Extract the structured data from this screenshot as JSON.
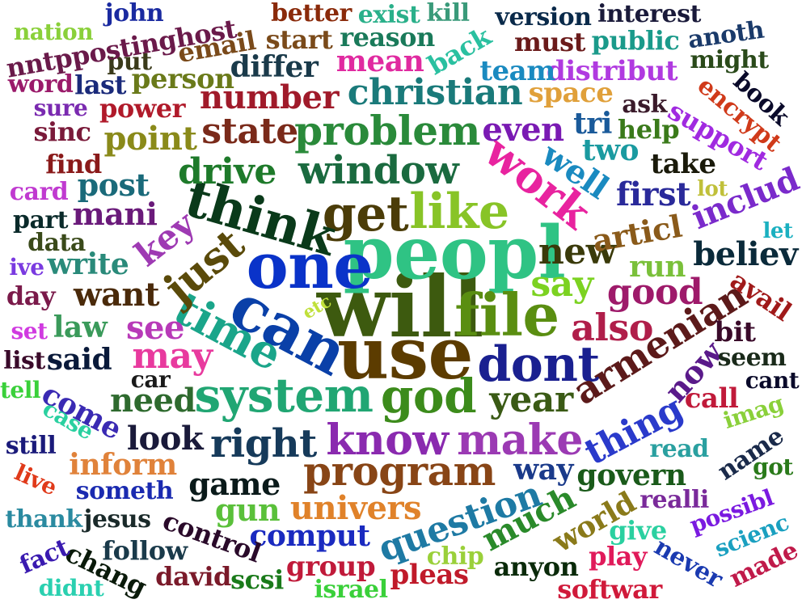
{
  "words": [
    {
      "text": "will",
      "color": "#3d5a0f"
    },
    {
      "text": "peopl",
      "color": "#2fc384"
    },
    {
      "text": "use",
      "color": "#5c3c00"
    },
    {
      "text": "one",
      "color": "#0a33c9"
    },
    {
      "text": "can",
      "color": "#0a40a8"
    },
    {
      "text": "file",
      "color": "#5a8e11"
    },
    {
      "text": "system",
      "color": "#21a673"
    },
    {
      "text": "god",
      "color": "#3c8b1b"
    },
    {
      "text": "get",
      "color": "#4b3c08"
    },
    {
      "text": "like",
      "color": "#88c427"
    },
    {
      "text": "think",
      "color": "#0a3a1a"
    },
    {
      "text": "time",
      "color": "#1aa58a"
    },
    {
      "text": "dont",
      "color": "#1a2090"
    },
    {
      "text": "know",
      "color": "#8a2aaf"
    },
    {
      "text": "make",
      "color": "#9b3ab3"
    },
    {
      "text": "program",
      "color": "#884516"
    },
    {
      "text": "right",
      "color": "#163a5a"
    },
    {
      "text": "work",
      "color": "#e8239f"
    },
    {
      "text": "problem",
      "color": "#2a8a3a"
    },
    {
      "text": "window",
      "color": "#1a6a3f"
    },
    {
      "text": "say",
      "color": "#7cd221"
    },
    {
      "text": "year",
      "color": "#3a5a15"
    },
    {
      "text": "armenian",
      "color": "#5c1a1a"
    },
    {
      "text": "just",
      "color": "#5a4a0a"
    },
    {
      "text": "may",
      "color": "#e83a9e"
    },
    {
      "text": "question",
      "color": "#1e7aa4"
    },
    {
      "text": "thing",
      "color": "#2a3acb"
    },
    {
      "text": "also",
      "color": "#b01e4a"
    },
    {
      "text": "new",
      "color": "#3a3a0a"
    },
    {
      "text": "good",
      "color": "#9e1a6a"
    },
    {
      "text": "christian",
      "color": "#1a7a7a"
    },
    {
      "text": "drive",
      "color": "#1e7a2a"
    },
    {
      "text": "state",
      "color": "#7a2a1a"
    },
    {
      "text": "number",
      "color": "#a01a2a"
    },
    {
      "text": "univers",
      "color": "#e0822a"
    },
    {
      "text": "much",
      "color": "#2a8a2a"
    },
    {
      "text": "need",
      "color": "#2e6a2e"
    },
    {
      "text": "look",
      "color": "#1a1a3a"
    },
    {
      "text": "want",
      "color": "#4a2a0a"
    },
    {
      "text": "see",
      "color": "#b83ab8"
    },
    {
      "text": "key",
      "color": "#9e3ab3"
    },
    {
      "text": "write",
      "color": "#2a8a7a"
    },
    {
      "text": "mani",
      "color": "#6a1a7a"
    },
    {
      "text": "game",
      "color": "#0a1a1a"
    },
    {
      "text": "govern",
      "color": "#1a5a1a"
    },
    {
      "text": "comput",
      "color": "#1a2ac0"
    },
    {
      "text": "inform",
      "color": "#e0823a"
    },
    {
      "text": "point",
      "color": "#8a8a1a"
    },
    {
      "text": "post",
      "color": "#1a6a7a"
    },
    {
      "text": "even",
      "color": "#7a1ab3"
    },
    {
      "text": "well",
      "color": "#1a8ac0"
    },
    {
      "text": "first",
      "color": "#2a2a9a"
    },
    {
      "text": "includ",
      "color": "#7a2acb"
    },
    {
      "text": "articl",
      "color": "#8a5a1a"
    },
    {
      "text": "believ",
      "color": "#0a2a3a"
    },
    {
      "text": "run",
      "color": "#7ac03a"
    },
    {
      "text": "way",
      "color": "#1a3a8a"
    },
    {
      "text": "now",
      "color": "#5a1a8a"
    },
    {
      "text": "bit",
      "color": "#3a0a2a"
    },
    {
      "text": "call",
      "color": "#c01a3a"
    },
    {
      "text": "said",
      "color": "#0a1a3a"
    },
    {
      "text": "law",
      "color": "#3a9a5a"
    },
    {
      "text": "come",
      "color": "#3a2ab3"
    },
    {
      "text": "car",
      "color": "#1a1a1a"
    },
    {
      "text": "mean",
      "color": "#e02aa0"
    },
    {
      "text": "differ",
      "color": "#1a3a4a"
    },
    {
      "text": "person",
      "color": "#6a7a1a"
    },
    {
      "text": "email",
      "color": "#7a4a1a"
    },
    {
      "text": "start",
      "color": "#7a4a1a"
    },
    {
      "text": "reason",
      "color": "#1a7a5a"
    },
    {
      "text": "space",
      "color": "#e0a03a"
    },
    {
      "text": "distribut",
      "color": "#b03ae0"
    },
    {
      "text": "team",
      "color": "#1a8ac0"
    },
    {
      "text": "back",
      "color": "#2ac0a0"
    },
    {
      "text": "public",
      "color": "#1a9a8a"
    },
    {
      "text": "must",
      "color": "#6a1a1a"
    },
    {
      "text": "version",
      "color": "#0a2a4a"
    },
    {
      "text": "interest",
      "color": "#1a1a3a"
    },
    {
      "text": "anoth",
      "color": "#1a3a6a"
    },
    {
      "text": "might",
      "color": "#2a4a1a"
    },
    {
      "text": "encrypt",
      "color": "#d03a1a"
    },
    {
      "text": "book",
      "color": "#0a0a2a"
    },
    {
      "text": "support",
      "color": "#a02ae0"
    },
    {
      "text": "ask",
      "color": "#3a1a2a"
    },
    {
      "text": "tri",
      "color": "#1a5a9a"
    },
    {
      "text": "help",
      "color": "#3a7a1a"
    },
    {
      "text": "two",
      "color": "#1a9aa0"
    },
    {
      "text": "take",
      "color": "#1a1a0a"
    },
    {
      "text": "lot",
      "color": "#c0c03a"
    },
    {
      "text": "let",
      "color": "#1ab0c0"
    },
    {
      "text": "avail",
      "color": "#a01a1a"
    },
    {
      "text": "seem",
      "color": "#1a2a1a"
    },
    {
      "text": "cant",
      "color": "#0a0a2a"
    },
    {
      "text": "imag",
      "color": "#8ad03a"
    },
    {
      "text": "read",
      "color": "#2aa0a0"
    },
    {
      "text": "name",
      "color": "#1a2a4a"
    },
    {
      "text": "got",
      "color": "#2a7a1a"
    },
    {
      "text": "realli",
      "color": "#7a2a9a"
    },
    {
      "text": "possibl",
      "color": "#7a1ae0"
    },
    {
      "text": "scienc",
      "color": "#1aa0c0"
    },
    {
      "text": "made",
      "color": "#c01a4a"
    },
    {
      "text": "never",
      "color": "#1a3ab0"
    },
    {
      "text": "give",
      "color": "#2ad0a0"
    },
    {
      "text": "play",
      "color": "#e01a5a"
    },
    {
      "text": "softwar",
      "color": "#d01a3a"
    },
    {
      "text": "anyon",
      "color": "#0a2a0a"
    },
    {
      "text": "world",
      "color": "#8a7a1a"
    },
    {
      "text": "chip",
      "color": "#9ad03a"
    },
    {
      "text": "pleas",
      "color": "#c01a2a"
    },
    {
      "text": "israel",
      "color": "#3ad03a"
    },
    {
      "text": "group",
      "color": "#c01a3a"
    },
    {
      "text": "scsi",
      "color": "#1a7a1a"
    },
    {
      "text": "david",
      "color": "#7a1a2a"
    },
    {
      "text": "gun",
      "color": "#5ac03a"
    },
    {
      "text": "control",
      "color": "#2a0a2a"
    },
    {
      "text": "follow",
      "color": "#1a3a4a"
    },
    {
      "text": "chang",
      "color": "#0a1a0a"
    },
    {
      "text": "fact",
      "color": "#3a1ab0"
    },
    {
      "text": "didnt",
      "color": "#2ad0b0"
    },
    {
      "text": "thank",
      "color": "#2a8aa0"
    },
    {
      "text": "jesus",
      "color": "#1a2a2a"
    },
    {
      "text": "someth",
      "color": "#1a2ab0"
    },
    {
      "text": "live",
      "color": "#e03a1a"
    },
    {
      "text": "still",
      "color": "#1a1a7a"
    },
    {
      "text": "case",
      "color": "#2ad0a0"
    },
    {
      "text": "tell",
      "color": "#3ad03a"
    },
    {
      "text": "list",
      "color": "#3a0a2a"
    },
    {
      "text": "set",
      "color": "#d03ae0"
    },
    {
      "text": "day",
      "color": "#7a1a4a"
    },
    {
      "text": "ive",
      "color": "#7a3ae0"
    },
    {
      "text": "data",
      "color": "#3a4a1a"
    },
    {
      "text": "part",
      "color": "#0a2a2a"
    },
    {
      "text": "card",
      "color": "#c03ad0"
    },
    {
      "text": "find",
      "color": "#8a1a1a"
    },
    {
      "text": "sinc",
      "color": "#7a1a3a"
    },
    {
      "text": "sure",
      "color": "#7a2ab0"
    },
    {
      "text": "power",
      "color": "#b01a2a"
    },
    {
      "text": "word",
      "color": "#9a1a6a"
    },
    {
      "text": "last",
      "color": "#1a2a7a"
    },
    {
      "text": "put",
      "color": "#3a3a1a"
    },
    {
      "text": "nntppostinghost",
      "color": "#6a1a4a"
    },
    {
      "text": "nation",
      "color": "#8ad03a"
    },
    {
      "text": "john",
      "color": "#1a2aa0"
    },
    {
      "text": "better",
      "color": "#8a2a0a"
    },
    {
      "text": "exist",
      "color": "#2ab08a"
    },
    {
      "text": "kill",
      "color": "#3a9a7a"
    },
    {
      "text": "etc",
      "color": "#c0e03a"
    }
  ]
}
